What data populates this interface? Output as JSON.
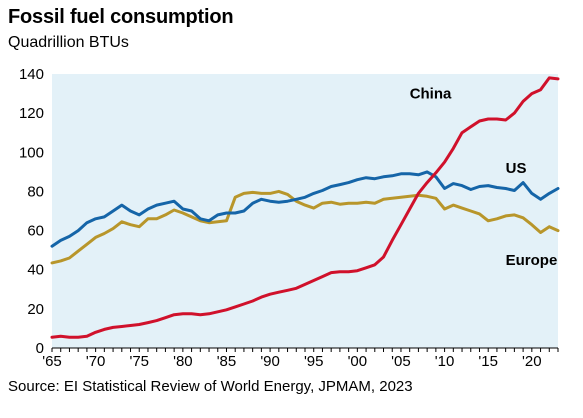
{
  "title": "Fossil fuel consumption",
  "subtitle": "Quadrillion BTUs",
  "source": "Source: EI Statistical Review of World Energy, JPMAM, 2023",
  "colors": {
    "plot_bg": "#e3f1f8",
    "China": "#d0112b",
    "US": "#1565a8",
    "Europe": "#b8962b"
  },
  "chart_data": {
    "type": "line",
    "title": "Fossil fuel consumption",
    "subtitle": "Quadrillion BTUs",
    "xlabel": "",
    "ylabel": "",
    "xlim": [
      1965,
      2023
    ],
    "ylim": [
      0,
      140
    ],
    "y_ticks": [
      0,
      20,
      40,
      60,
      80,
      100,
      120,
      140
    ],
    "x_ticks": [
      {
        "year": 1965,
        "label": "'65"
      },
      {
        "year": 1970,
        "label": "'70"
      },
      {
        "year": 1975,
        "label": "'75"
      },
      {
        "year": 1980,
        "label": "'80"
      },
      {
        "year": 1985,
        "label": "'85"
      },
      {
        "year": 1990,
        "label": "'90"
      },
      {
        "year": 1995,
        "label": "'95"
      },
      {
        "year": 2000,
        "label": "'00"
      },
      {
        "year": 2005,
        "label": "'05"
      },
      {
        "year": 2010,
        "label": "'10"
      },
      {
        "year": 2015,
        "label": "'15"
      },
      {
        "year": 2020,
        "label": "'20"
      }
    ],
    "grid": false,
    "x": [
      1965,
      1966,
      1967,
      1968,
      1969,
      1970,
      1971,
      1972,
      1973,
      1974,
      1975,
      1976,
      1977,
      1978,
      1979,
      1980,
      1981,
      1982,
      1983,
      1984,
      1985,
      1986,
      1987,
      1988,
      1989,
      1990,
      1991,
      1992,
      1993,
      1994,
      1995,
      1996,
      1997,
      1998,
      1999,
      2000,
      2001,
      2002,
      2003,
      2004,
      2005,
      2006,
      2007,
      2008,
      2009,
      2010,
      2011,
      2012,
      2013,
      2014,
      2015,
      2016,
      2017,
      2018,
      2019,
      2020,
      2021,
      2022,
      2023
    ],
    "series": [
      {
        "name": "China",
        "values": [
          5.5,
          6,
          5.5,
          5.5,
          6,
          8,
          9.5,
          10.5,
          11,
          11.5,
          12,
          13,
          14,
          15.5,
          17,
          17.5,
          17.5,
          17,
          17.5,
          18.5,
          19.5,
          21,
          22.5,
          24,
          26,
          27.5,
          28.5,
          29.5,
          30.5,
          32.5,
          34.5,
          36.5,
          38.5,
          39,
          39,
          39.5,
          41,
          42.5,
          46.5,
          55,
          63,
          71,
          79,
          84.5,
          89.5,
          95,
          102,
          110,
          113,
          116,
          117,
          117,
          116.5,
          120,
          126,
          130,
          132,
          138,
          137.5
        ]
      },
      {
        "name": "US",
        "values": [
          52,
          55,
          57,
          60,
          64,
          66,
          67,
          70,
          73,
          70,
          68,
          71,
          73,
          74,
          75,
          71,
          70,
          66,
          65,
          68,
          69,
          69,
          70,
          74,
          76,
          75,
          74.5,
          75,
          76,
          77,
          79,
          80.5,
          82.5,
          83.5,
          84.5,
          86,
          87,
          86.5,
          87.5,
          88,
          89,
          89,
          88.5,
          90,
          87.5,
          81.5,
          84,
          83,
          81,
          82.5,
          83,
          82,
          81.5,
          80.5,
          84.5,
          79,
          76,
          79,
          81.5
        ]
      },
      {
        "name": "Europe",
        "values": [
          43.5,
          44.5,
          46,
          49.5,
          53,
          56.5,
          58.5,
          61,
          64.5,
          63,
          62,
          66,
          66,
          68,
          70.5,
          69,
          67,
          65,
          64,
          64.5,
          65,
          77,
          79,
          79.5,
          79,
          79,
          80,
          78.5,
          75,
          73,
          71.5,
          74,
          74.5,
          73.5,
          74,
          74,
          74.5,
          74,
          76,
          76.5,
          77,
          77.5,
          78,
          77.5,
          76.5,
          71,
          73,
          71.5,
          70,
          68.5,
          65,
          66,
          67.5,
          68,
          66.5,
          63,
          59,
          62,
          60
        ]
      }
    ]
  }
}
